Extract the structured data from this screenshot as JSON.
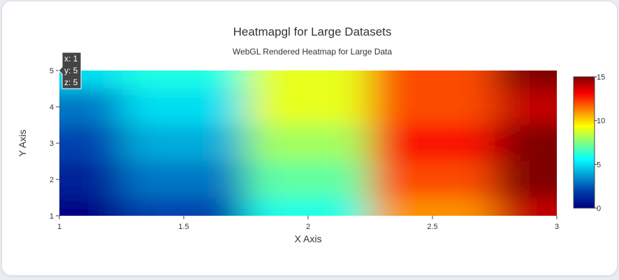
{
  "chart_data": {
    "type": "heatmap",
    "title": "Heatmapgl for Large Datasets",
    "subtitle": "WebGL Rendered Heatmap for Large Data",
    "xlabel": "X Axis",
    "ylabel": "Y Axis",
    "xlim": [
      1,
      3
    ],
    "ylim": [
      1,
      5
    ],
    "x": [
      1,
      1.5,
      2,
      2.5,
      3
    ],
    "y": [
      1,
      2,
      3,
      4,
      5
    ],
    "z": [
      [
        0,
        2,
        6,
        11,
        14
      ],
      [
        1,
        3,
        7,
        12,
        15
      ],
      [
        2,
        4,
        8,
        13,
        15
      ],
      [
        3,
        5,
        9,
        12,
        14
      ],
      [
        5,
        6,
        9,
        12,
        15
      ]
    ],
    "x_ticks": [
      "1",
      "1.5",
      "2",
      "2.5",
      "3"
    ],
    "y_ticks": [
      "1",
      "2",
      "3",
      "4",
      "5"
    ],
    "colorscale": "Jet",
    "colorbar": {
      "min": 0,
      "max": 15,
      "ticks": [
        "0",
        "5",
        "10",
        "15"
      ]
    },
    "hover": {
      "x_label": "x: 1",
      "y_label": "y: 5",
      "z_label": "z: 5",
      "bg": "#444444"
    }
  }
}
